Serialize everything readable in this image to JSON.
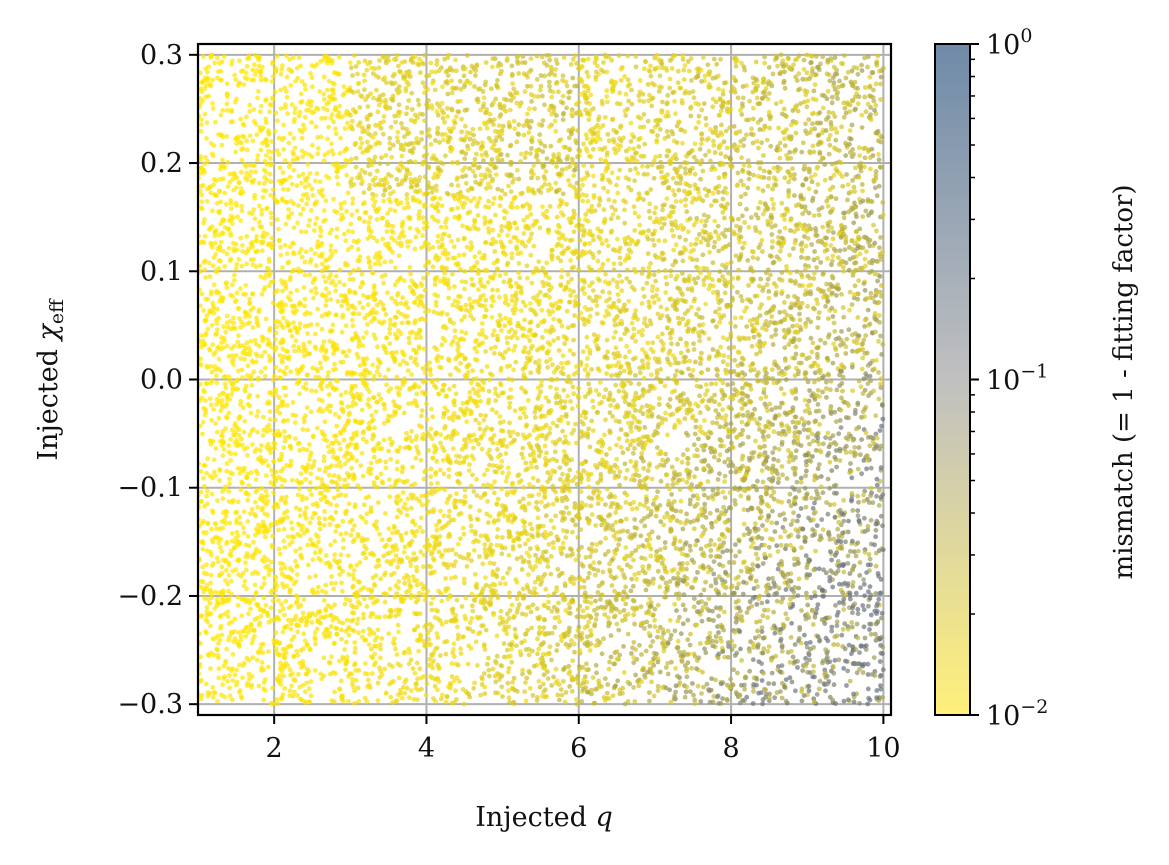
{
  "chart_data": {
    "type": "scatter",
    "xlabel": "Injected q",
    "ylabel": "Injected χeff",
    "xlim": [
      1,
      10.1
    ],
    "ylim": [
      -0.31,
      0.31
    ],
    "x_ticks": [
      2,
      4,
      6,
      8,
      10
    ],
    "x_tick_labels": [
      "2",
      "4",
      "6",
      "8",
      "10"
    ],
    "y_ticks": [
      -0.3,
      -0.2,
      -0.1,
      0.0,
      0.1,
      0.2,
      0.3
    ],
    "y_tick_labels": [
      "−0.3",
      "−0.2",
      "−0.1",
      "0.0",
      "0.1",
      "0.2",
      "0.3"
    ],
    "grid": true,
    "colorbar": {
      "label": "mismatch (= 1 - fitting factor)",
      "scale": "log",
      "range": [
        0.01,
        1
      ],
      "ticks": [
        0.01,
        0.1,
        1
      ],
      "tick_labels": [
        "10",
        "10",
        "10"
      ],
      "tick_exponents": [
        "−2",
        "−1",
        "0"
      ],
      "colors": {
        "low": "#fff07a",
        "mid": "#c0c0c0",
        "high": "#6f8aa8"
      }
    },
    "point_color_low": "#ffe500",
    "point_color_high": "#6b7480",
    "distribution": {
      "x_range": [
        1,
        10
      ],
      "y_range": [
        -0.3,
        0.3
      ],
      "point_count": 11000,
      "mismatch_trend": "low mismatch at small q; higher mismatch near q≈9–10 with negative χeff (around −0.25)"
    }
  }
}
